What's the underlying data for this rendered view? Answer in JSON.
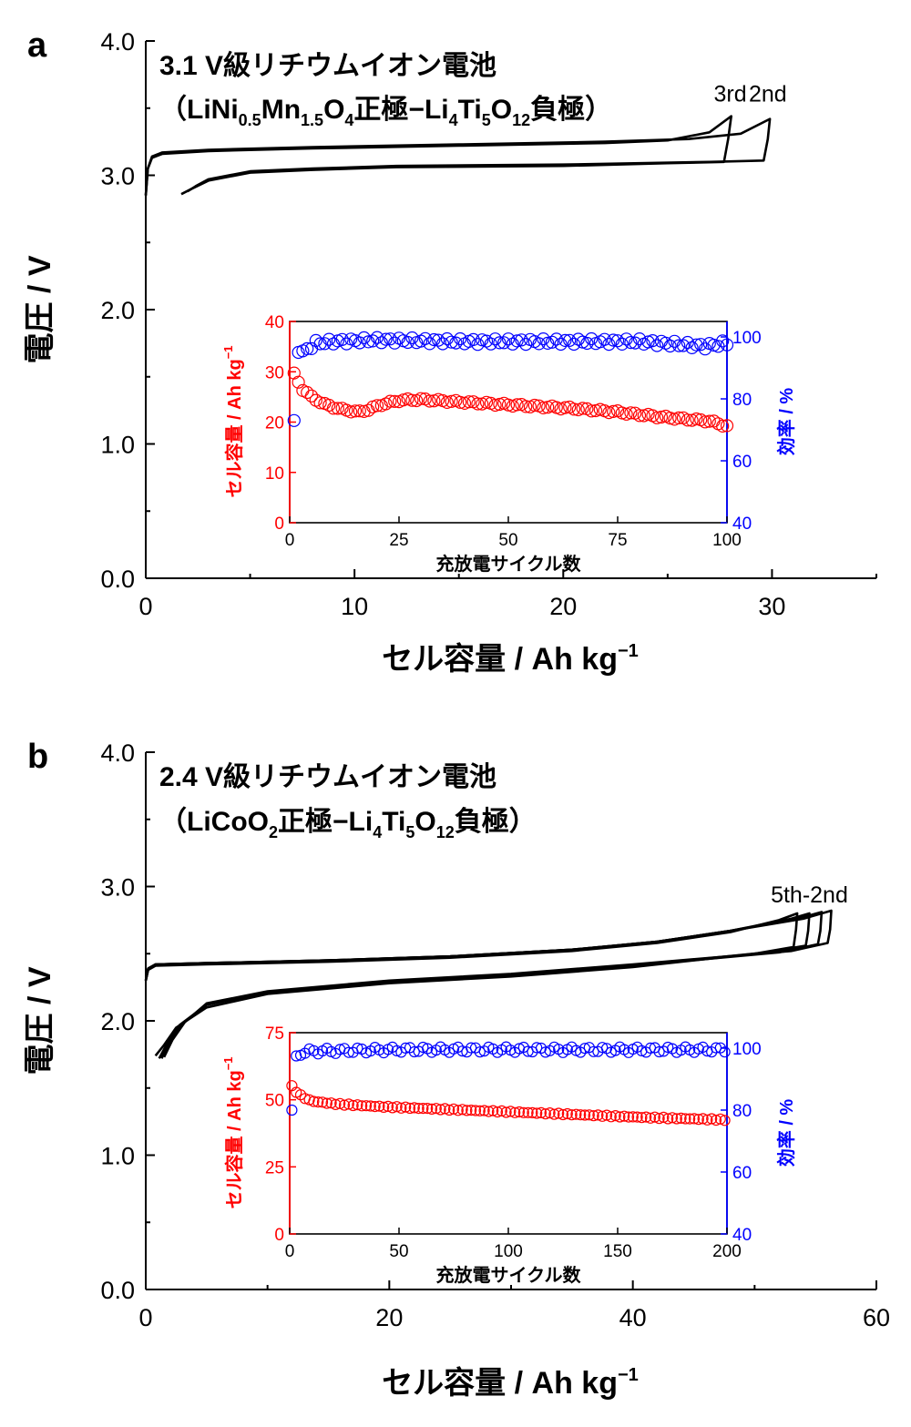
{
  "chart_data": [
    {
      "panel": "a",
      "type": "line",
      "title_line1": "3.1 V級リチウムイオン電池",
      "title_line2": {
        "runs": [
          [
            "（LiNi",
            ""
          ],
          [
            "0.5",
            "sub"
          ],
          [
            "Mn",
            ""
          ],
          [
            "1.5",
            "sub"
          ],
          [
            "O",
            ""
          ],
          [
            "4",
            "sub"
          ],
          [
            "正極−Li",
            ""
          ],
          [
            "4",
            "sub"
          ],
          [
            "Ti",
            ""
          ],
          [
            "5",
            "sub"
          ],
          [
            "O",
            ""
          ],
          [
            "12",
            "sub"
          ],
          [
            "負極）",
            ""
          ]
        ]
      },
      "xlabel": "セル容量 / Ah kg",
      "xlabel_sup": "−1",
      "ylabel": "電圧 / V",
      "xlim": [
        0,
        35
      ],
      "ylim": [
        0,
        4
      ],
      "xticks": [
        0,
        10,
        20,
        30
      ],
      "xtick_labels": [
        "0",
        "10",
        "20",
        "30"
      ],
      "yticks": [
        0,
        1,
        2,
        3,
        4
      ],
      "ytick_labels": [
        "0.0",
        "1.0",
        "2.0",
        "3.0",
        "4.0"
      ],
      "cycle_labels": [
        {
          "text": "3rd",
          "x": 28.0,
          "y": 3.55
        },
        {
          "text": "2nd",
          "x": 29.8,
          "y": 3.55
        }
      ],
      "series": [
        {
          "charge": [
            [
              0,
              2.85
            ],
            [
              0.1,
              3.05
            ],
            [
              0.3,
              3.13
            ],
            [
              0.8,
              3.16
            ],
            [
              3,
              3.18
            ],
            [
              8,
              3.2
            ],
            [
              15,
              3.22
            ],
            [
              22,
              3.24
            ],
            [
              25,
              3.26
            ],
            [
              27,
              3.32
            ],
            [
              28.05,
              3.44
            ]
          ],
          "discharge": [
            [
              28.05,
              3.44
            ],
            [
              27.9,
              3.27
            ],
            [
              27.7,
              3.1
            ],
            [
              25,
              3.09
            ],
            [
              20,
              3.07
            ],
            [
              12,
              3.06
            ],
            [
              8,
              3.04
            ],
            [
              5,
              3.02
            ],
            [
              3,
              2.96
            ],
            [
              2.2,
              2.9
            ],
            [
              1.7,
              2.86
            ]
          ]
        },
        {
          "charge": [
            [
              0,
              2.85
            ],
            [
              0.1,
              3.05
            ],
            [
              0.3,
              3.14
            ],
            [
              0.8,
              3.17
            ],
            [
              3,
              3.19
            ],
            [
              8,
              3.21
            ],
            [
              15,
              3.23
            ],
            [
              22,
              3.25
            ],
            [
              26,
              3.27
            ],
            [
              28.5,
              3.31
            ],
            [
              29.9,
              3.42
            ]
          ],
          "discharge": [
            [
              29.9,
              3.42
            ],
            [
              29.8,
              3.27
            ],
            [
              29.6,
              3.11
            ],
            [
              27,
              3.1
            ],
            [
              20,
              3.08
            ],
            [
              12,
              3.07
            ],
            [
              8,
              3.05
            ],
            [
              5,
              3.03
            ],
            [
              3,
              2.97
            ],
            [
              2.4,
              2.92
            ],
            [
              2.0,
              2.88
            ]
          ]
        }
      ],
      "inset": {
        "xlabel": "充放電サイクル数",
        "ylabel_left": "セル容量 / Ah kg",
        "ylabel_left_sup": "−1",
        "ylabel_right": "効率 / %",
        "xlim": [
          0,
          100
        ],
        "ylim_left": [
          0,
          40
        ],
        "ylim_right": [
          40,
          105
        ],
        "xticks": [
          0,
          25,
          50,
          75,
          100
        ],
        "xtick_labels": [
          "0",
          "25",
          "50",
          "75",
          "100"
        ],
        "yticks_left": [
          0,
          10,
          20,
          30,
          40
        ],
        "ytick_labels_left": [
          "0",
          "10",
          "20",
          "30",
          "40"
        ],
        "yticks_right": [
          40,
          60,
          80,
          100
        ],
        "ytick_labels_right": [
          "40",
          "60",
          "80",
          "100"
        ],
        "capacity_anchors": [
          [
            1,
            29.5
          ],
          [
            2,
            28
          ],
          [
            3,
            26.5
          ],
          [
            5,
            25
          ],
          [
            8,
            23.5
          ],
          [
            12,
            22.5
          ],
          [
            16,
            22
          ],
          [
            18,
            22.5
          ],
          [
            21,
            23.5
          ],
          [
            25,
            24.3
          ],
          [
            30,
            24.5
          ],
          [
            35,
            24.2
          ],
          [
            45,
            23.7
          ],
          [
            55,
            23.2
          ],
          [
            65,
            22.7
          ],
          [
            75,
            22.0
          ],
          [
            85,
            21.0
          ],
          [
            92,
            20.5
          ],
          [
            96,
            20.2
          ],
          [
            100,
            19.2
          ]
        ],
        "efficiency_anchors": [
          [
            1,
            73
          ],
          [
            2,
            95
          ],
          [
            4,
            96
          ],
          [
            6,
            98
          ],
          [
            10,
            98.5
          ],
          [
            20,
            99
          ],
          [
            40,
            98.5
          ],
          [
            60,
            98.5
          ],
          [
            80,
            98.5
          ],
          [
            95,
            97
          ],
          [
            100,
            98
          ]
        ],
        "capacity_color": "#ff0000",
        "efficiency_color": "#0000ff"
      }
    },
    {
      "panel": "b",
      "type": "line",
      "title_line1": "2.4 V級リチウムイオン電池",
      "title_line2": {
        "runs": [
          [
            "（LiCoO",
            ""
          ],
          [
            "2",
            "sub"
          ],
          [
            "正極−Li",
            ""
          ],
          [
            "4",
            "sub"
          ],
          [
            "Ti",
            ""
          ],
          [
            "5",
            "sub"
          ],
          [
            "O",
            ""
          ],
          [
            "12",
            "sub"
          ],
          [
            "負極）",
            ""
          ]
        ]
      },
      "xlabel": "セル容量 / Ah kg",
      "xlabel_sup": "−1",
      "ylabel": "電圧 / V",
      "xlim": [
        0,
        60
      ],
      "ylim": [
        0,
        4
      ],
      "xticks": [
        0,
        20,
        40,
        60
      ],
      "xtick_labels": [
        "0",
        "20",
        "40",
        "60"
      ],
      "yticks": [
        0,
        1,
        2,
        3,
        4
      ],
      "ytick_labels": [
        "0.0",
        "1.0",
        "2.0",
        "3.0",
        "4.0"
      ],
      "cycle_labels": [
        {
          "text": "5th-2nd",
          "x": 54.5,
          "y": 2.88
        }
      ],
      "series": [
        {
          "charge": [
            [
              0,
              2.3
            ],
            [
              0.2,
              2.38
            ],
            [
              0.8,
              2.41
            ],
            [
              5,
              2.42
            ],
            [
              15,
              2.44
            ],
            [
              25,
              2.47
            ],
            [
              35,
              2.52
            ],
            [
              42,
              2.58
            ],
            [
              48,
              2.66
            ],
            [
              52,
              2.75
            ],
            [
              53.5,
              2.8
            ]
          ],
          "discharge": [
            [
              53.5,
              2.8
            ],
            [
              53.4,
              2.68
            ],
            [
              53.2,
              2.55
            ],
            [
              50,
              2.5
            ],
            [
              40,
              2.4
            ],
            [
              30,
              2.33
            ],
            [
              20,
              2.28
            ],
            [
              10,
              2.2
            ],
            [
              5,
              2.1
            ],
            [
              2.5,
              1.95
            ],
            [
              1.5,
              1.82
            ],
            [
              0.8,
              1.74
            ]
          ]
        },
        {
          "charge": [
            [
              0,
              2.3
            ],
            [
              0.2,
              2.39
            ],
            [
              0.8,
              2.42
            ],
            [
              5,
              2.43
            ],
            [
              15,
              2.45
            ],
            [
              25,
              2.48
            ],
            [
              35,
              2.53
            ],
            [
              42,
              2.59
            ],
            [
              48,
              2.67
            ],
            [
              53,
              2.76
            ],
            [
              54.5,
              2.8
            ]
          ],
          "discharge": [
            [
              54.5,
              2.8
            ],
            [
              54.4,
              2.67
            ],
            [
              54.2,
              2.56
            ],
            [
              51,
              2.51
            ],
            [
              40,
              2.41
            ],
            [
              30,
              2.34
            ],
            [
              20,
              2.29
            ],
            [
              10,
              2.21
            ],
            [
              5,
              2.12
            ],
            [
              2.8,
              1.97
            ],
            [
              1.8,
              1.84
            ],
            [
              1.1,
              1.72
            ]
          ]
        },
        {
          "charge": [
            [
              0,
              2.3
            ],
            [
              0.2,
              2.39
            ],
            [
              0.8,
              2.42
            ],
            [
              5,
              2.43
            ],
            [
              15,
              2.45
            ],
            [
              25,
              2.48
            ],
            [
              35,
              2.53
            ],
            [
              42,
              2.59
            ],
            [
              48,
              2.67
            ],
            [
              53.5,
              2.76
            ],
            [
              55.5,
              2.81
            ]
          ],
          "discharge": [
            [
              55.5,
              2.81
            ],
            [
              55.4,
              2.67
            ],
            [
              55.2,
              2.57
            ],
            [
              52,
              2.51
            ],
            [
              40,
              2.41
            ],
            [
              30,
              2.34
            ],
            [
              20,
              2.29
            ],
            [
              10,
              2.21
            ],
            [
              5,
              2.12
            ],
            [
              3.0,
              1.98
            ],
            [
              2.0,
              1.85
            ],
            [
              1.3,
              1.72
            ]
          ]
        },
        {
          "charge": [
            [
              0,
              2.3
            ],
            [
              0.2,
              2.39
            ],
            [
              0.8,
              2.42
            ],
            [
              5,
              2.43
            ],
            [
              15,
              2.45
            ],
            [
              25,
              2.48
            ],
            [
              35,
              2.53
            ],
            [
              42,
              2.59
            ],
            [
              48,
              2.67
            ],
            [
              54,
              2.76
            ],
            [
              56.3,
              2.82
            ]
          ],
          "discharge": [
            [
              56.3,
              2.82
            ],
            [
              56.2,
              2.68
            ],
            [
              56.0,
              2.58
            ],
            [
              53,
              2.52
            ],
            [
              40,
              2.42
            ],
            [
              30,
              2.35
            ],
            [
              20,
              2.3
            ],
            [
              10,
              2.22
            ],
            [
              5,
              2.13
            ],
            [
              3.2,
              1.99
            ],
            [
              2.2,
              1.86
            ],
            [
              1.5,
              1.73
            ]
          ]
        }
      ],
      "inset": {
        "xlabel": "充放電サイクル数",
        "ylabel_left": "セル容量 / Ah kg",
        "ylabel_left_sup": "−1",
        "ylabel_right": "効率 / %",
        "xlim": [
          0,
          200
        ],
        "ylim_left": [
          0,
          75
        ],
        "ylim_right": [
          40,
          105
        ],
        "xticks": [
          0,
          50,
          100,
          150,
          200
        ],
        "xtick_labels": [
          "0",
          "50",
          "100",
          "150",
          "200"
        ],
        "yticks_left": [
          0,
          25,
          50,
          75
        ],
        "ytick_labels_left": [
          "0",
          "25",
          "50",
          "75"
        ],
        "yticks_right": [
          40,
          60,
          80,
          100
        ],
        "ytick_labels_right": [
          "40",
          "60",
          "80",
          "100"
        ],
        "capacity_anchors": [
          [
            1,
            55
          ],
          [
            3,
            53
          ],
          [
            6,
            51
          ],
          [
            10,
            49.5
          ],
          [
            20,
            48.5
          ],
          [
            40,
            47.5
          ],
          [
            70,
            46.5
          ],
          [
            100,
            45.5
          ],
          [
            130,
            44.5
          ],
          [
            160,
            43.5
          ],
          [
            200,
            42.5
          ]
        ],
        "efficiency_anchors": [
          [
            1,
            80
          ],
          [
            2,
            97
          ],
          [
            5,
            98.5
          ],
          [
            10,
            99
          ],
          [
            50,
            99.5
          ],
          [
            100,
            99.5
          ],
          [
            150,
            99.5
          ],
          [
            200,
            99.5
          ]
        ],
        "capacity_color": "#ff0000",
        "efficiency_color": "#0000ff"
      }
    }
  ]
}
